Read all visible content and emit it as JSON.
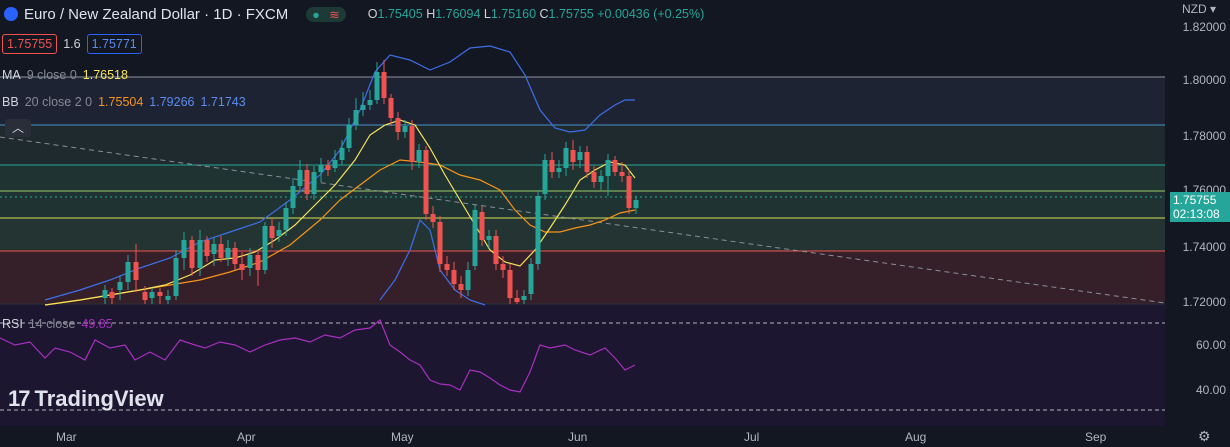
{
  "header": {
    "symbol_title": "Euro / New Zealand Dollar · 1D · FXCM",
    "ohlc": {
      "o_label": "O",
      "o": "1.75405",
      "h_label": "H",
      "h": "1.76094",
      "l_label": "L",
      "l": "1.75160",
      "c_label": "C",
      "c": "1.75755",
      "change": "+0.00436 (+0.25%)"
    },
    "sell_price": "1.75755",
    "spread": "1.6",
    "buy_price": "1.75771"
  },
  "indicators": {
    "ma": {
      "label": "MA",
      "params": "9 close 0",
      "value": "1.76518"
    },
    "bb": {
      "label": "BB",
      "params": "20 close 2 0",
      "basis": "1.75504",
      "upper": "1.79266",
      "lower": "1.71743"
    },
    "rsi": {
      "label": "RSI",
      "params": "14 close",
      "value": "49.85"
    }
  },
  "axis": {
    "currency": "NZD",
    "price_ticks": [
      "1.82000",
      "1.80000",
      "1.78000",
      "1.76000",
      "1.74000",
      "1.72000"
    ],
    "rsi_ticks": [
      "60.00",
      "40.00"
    ],
    "months": [
      "Mar",
      "Apr",
      "May",
      "Jun",
      "Jul",
      "Aug",
      "Sep"
    ],
    "last_price": "1.75755",
    "countdown": "02:13:08"
  },
  "branding": {
    "logo_text": "TradingView"
  },
  "colors": {
    "background": "#131722",
    "up": "#26a69a",
    "down": "#ef5350",
    "ma": "#f7e35a",
    "bb_basis": "#f7931a",
    "bb_band": "#3d6fe8",
    "rsi": "#a82fbf"
  }
}
